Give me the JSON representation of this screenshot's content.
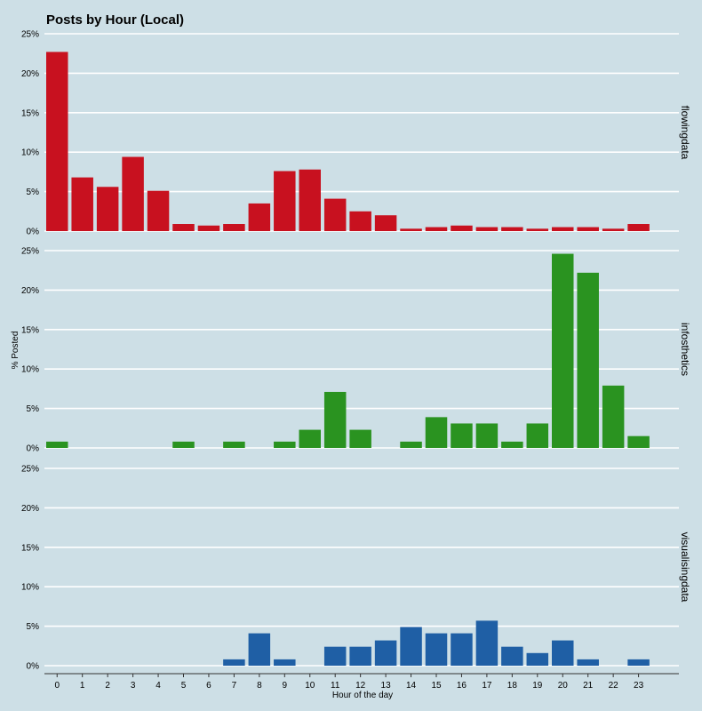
{
  "chart_data": {
    "type": "bar",
    "title": "Posts by Hour (Local)",
    "xlabel": "Hour of the day",
    "ylabel": "% Posted",
    "categories": [
      "0",
      "1",
      "2",
      "3",
      "4",
      "5",
      "6",
      "7",
      "8",
      "9",
      "10",
      "11",
      "12",
      "13",
      "14",
      "15",
      "16",
      "17",
      "18",
      "19",
      "20",
      "21",
      "22",
      "23"
    ],
    "ylim": [
      0,
      25
    ],
    "yticks": [
      "0%",
      "5%",
      "10%",
      "15%",
      "20%",
      "25%"
    ],
    "grid": true,
    "panels": [
      {
        "name": "flowingdata",
        "color": "#c8111f",
        "values": [
          22.7,
          6.8,
          5.6,
          9.4,
          5.1,
          0.9,
          0.7,
          0.9,
          3.5,
          7.6,
          7.8,
          4.1,
          2.5,
          2.0,
          0.3,
          0.5,
          0.7,
          0.5,
          0.5,
          0.3,
          0.5,
          0.5,
          0.3,
          0.9
        ]
      },
      {
        "name": "infosthetics",
        "color": "#2a9320",
        "values": [
          0.8,
          0,
          0,
          0,
          0,
          0.8,
          0,
          0.8,
          0,
          0.8,
          2.3,
          7.1,
          2.3,
          0,
          0.8,
          3.9,
          3.1,
          3.1,
          0.8,
          3.1,
          24.6,
          22.2,
          7.9,
          1.5
        ]
      },
      {
        "name": "visualisingdata",
        "color": "#1f5fa5",
        "values": [
          0,
          0,
          0,
          0,
          0,
          0,
          0,
          0.8,
          4.1,
          0.8,
          0,
          2.4,
          2.4,
          3.2,
          4.9,
          4.1,
          4.1,
          5.7,
          2.4,
          1.6,
          3.2,
          0.8,
          0,
          0.8
        ]
      }
    ]
  }
}
